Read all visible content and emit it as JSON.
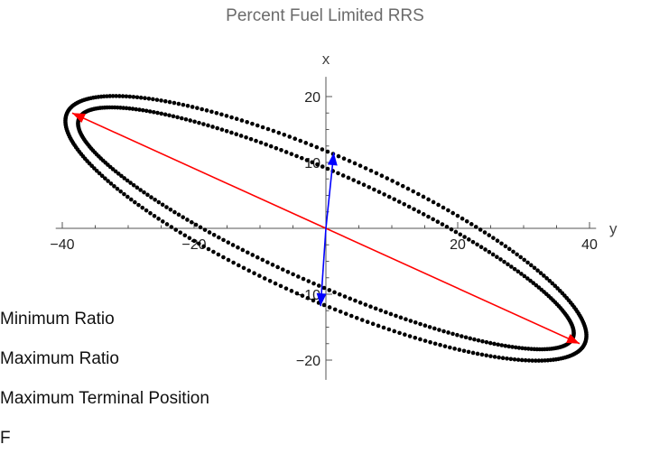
{
  "chart_data": {
    "type": "scatter",
    "title": "Percent Fuel Limited RRS",
    "xlabel": "y",
    "ylabel": "x",
    "xlim": [
      -41,
      41
    ],
    "ylim": [
      -23,
      23
    ],
    "x_ticks": [
      "−40",
      "−20",
      "20",
      "40"
    ],
    "x_tick_values": [
      -40,
      -20,
      20,
      40
    ],
    "y_ticks": [
      "20",
      "10",
      "−10",
      "−20"
    ],
    "y_tick_values": [
      20,
      10,
      -10,
      -20
    ],
    "grid": false,
    "series": [
      {
        "kind": "ellipse-points",
        "color": "#000000",
        "semi_major": 41,
        "semi_minor": 8.4,
        "angle_deg": -24,
        "count": 300
      },
      {
        "kind": "ellipse-points",
        "color": "#000000",
        "semi_major": 43,
        "semi_minor": 10.8,
        "angle_deg": -24,
        "count": 300
      },
      {
        "kind": "arrow-pair",
        "color": "#ff0000",
        "from": [
          0,
          0
        ],
        "to": [
          [
            -38.5,
            17.5
          ],
          [
            38.5,
            -17.5
          ]
        ]
      },
      {
        "kind": "arrow-pair",
        "color": "#0000ff",
        "from": [
          0,
          0
        ],
        "to": [
          [
            1.2,
            11.5
          ],
          [
            -0.8,
            -11.8
          ]
        ]
      }
    ],
    "legend": [
      "Minimum Ratio",
      "Maximum Ratio",
      "Maximum Terminal Position",
      "F"
    ]
  }
}
